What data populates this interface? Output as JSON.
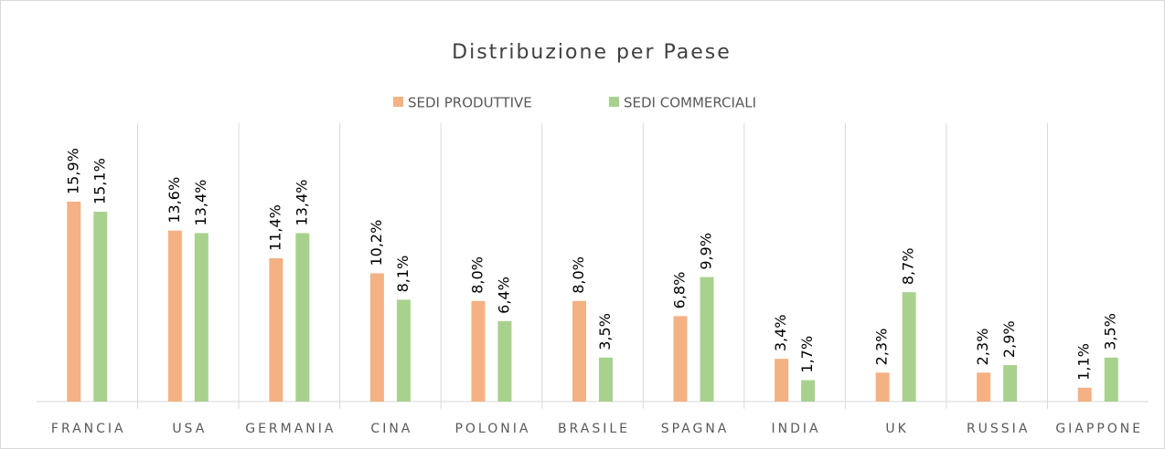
{
  "chart_data": {
    "type": "bar",
    "title": "Distribuzione per Paese",
    "categories": [
      "FRANCIA",
      "USA",
      "GERMANIA",
      "CINA",
      "POLONIA",
      "BRASILE",
      "SPAGNA",
      "INDIA",
      "UK",
      "RUSSIA",
      "GIAPPONE"
    ],
    "series": [
      {
        "name": "SEDI PRODUTTIVE",
        "color": "#F4B183",
        "values": [
          15.9,
          13.6,
          11.4,
          10.2,
          8.0,
          8.0,
          6.8,
          3.4,
          2.3,
          2.3,
          1.1
        ],
        "value_labels": [
          "15,9%",
          "13,6%",
          "11,4%",
          "10,2%",
          "8,0%",
          "8,0%",
          "6,8%",
          "3,4%",
          "2,3%",
          "2,3%",
          "1,1%"
        ]
      },
      {
        "name": "SEDI COMMERCIALI",
        "color": "#A9D18E",
        "values": [
          15.1,
          13.4,
          13.4,
          8.1,
          6.4,
          3.5,
          9.9,
          1.7,
          8.7,
          2.9,
          3.5
        ],
        "value_labels": [
          "15,1%",
          "13,4%",
          "13,4%",
          "8,1%",
          "6,4%",
          "3,5%",
          "9,9%",
          "1,7%",
          "8,7%",
          "2,9%",
          "3,5%"
        ]
      }
    ],
    "legend": "top"
  }
}
